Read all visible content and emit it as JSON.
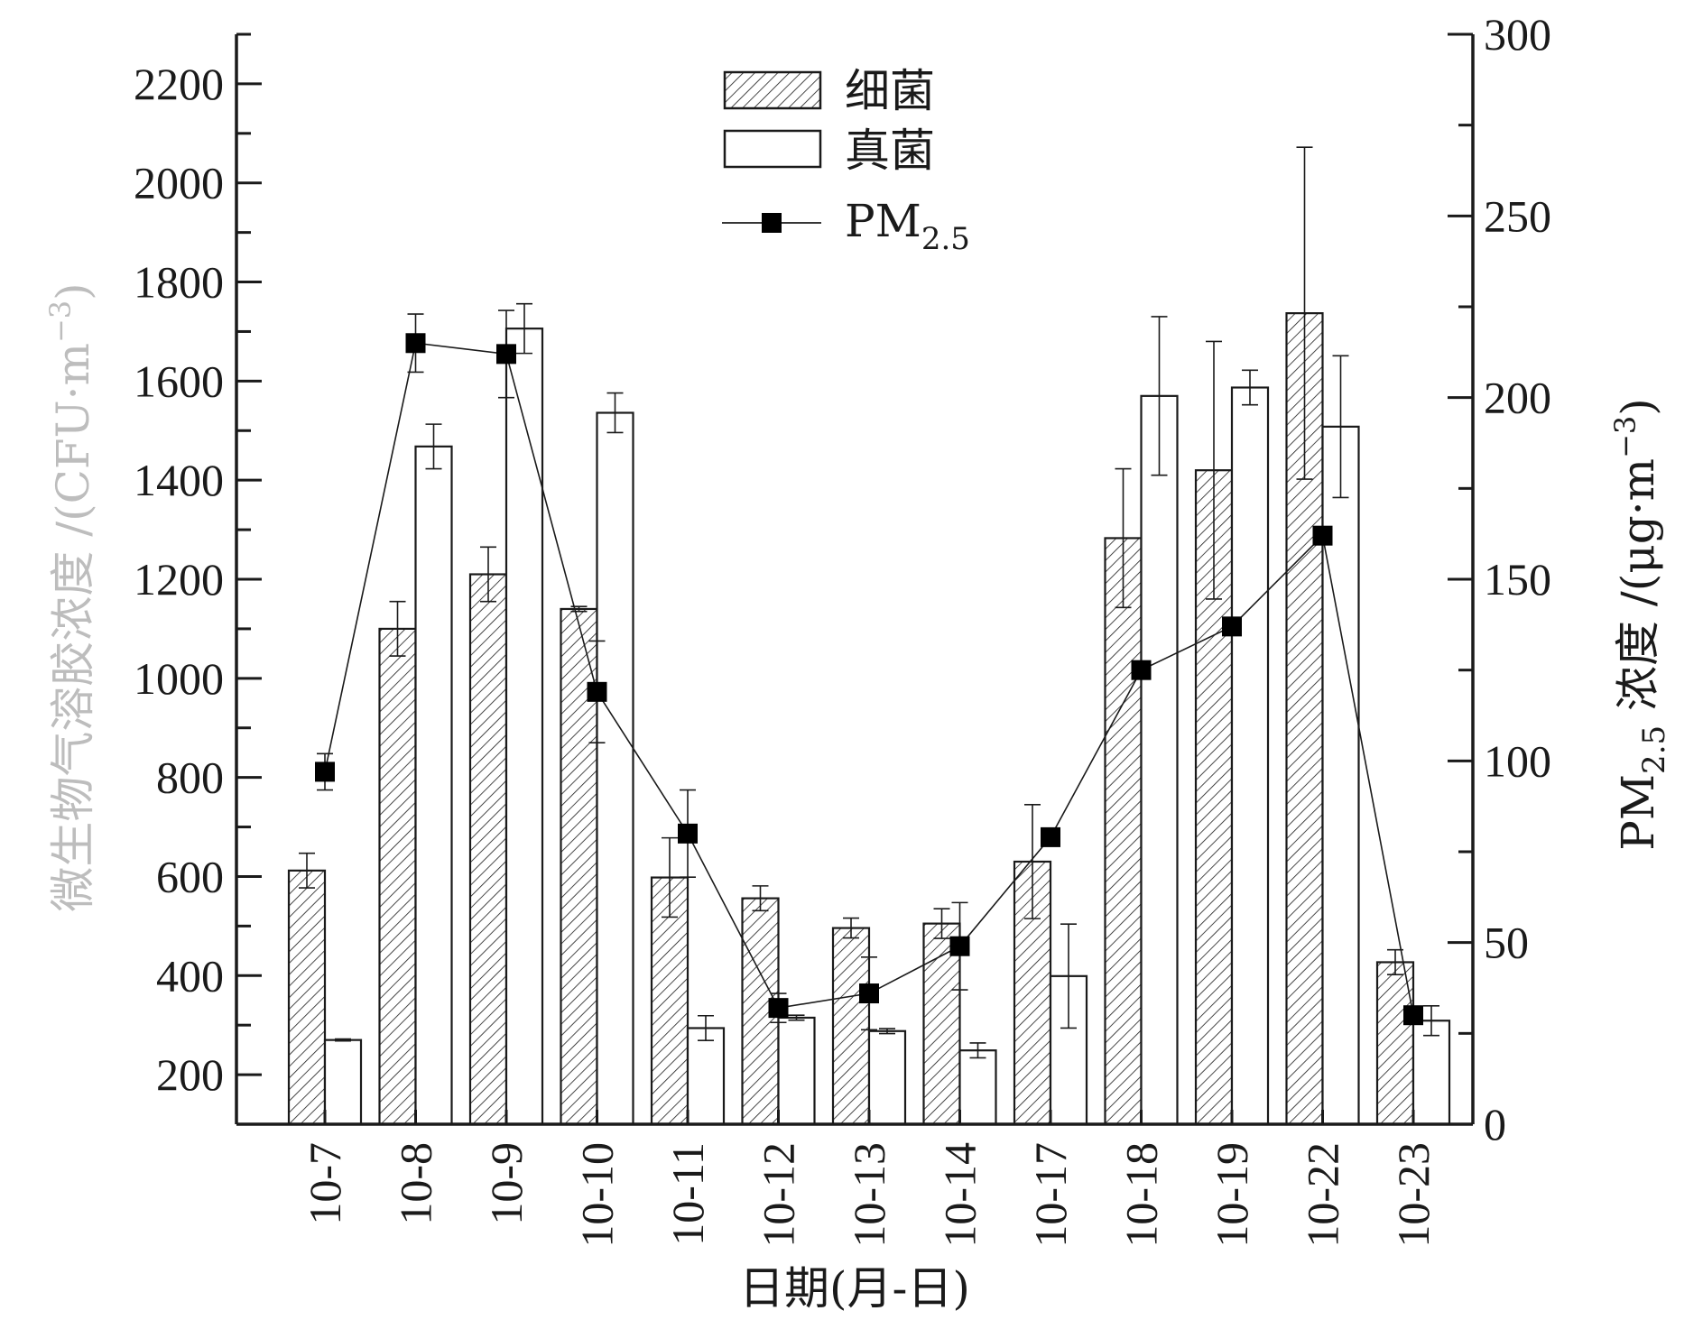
{
  "chart_data": {
    "type": "bar",
    "categories": [
      "10-7",
      "10-8",
      "10-9",
      "10-10",
      "10-11",
      "10-12",
      "10-13",
      "10-14",
      "10-17",
      "10-18",
      "10-19",
      "10-22",
      "10-23"
    ],
    "xlabel": "日期(月-日)",
    "ylabel": "微生物气溶胶浓度 /(CFU·m",
    "ylabel_sup": "−3",
    "ylabel_close": ")",
    "y2label_prefix": "PM",
    "y2label_sub": "2.5",
    "y2label_mid": " 浓度 /(μg·m",
    "y2label_sup": "−3",
    "y2label_close": ")",
    "ylim": [
      100,
      2300
    ],
    "yticks": [
      "200",
      "400",
      "600",
      "800",
      "1000",
      "1200",
      "1400",
      "1600",
      "1800",
      "2000",
      "2200"
    ],
    "y2lim": [
      0,
      300
    ],
    "y2ticks": [
      "0",
      "50",
      "100",
      "150",
      "200",
      "250",
      "300"
    ],
    "series": [
      {
        "name": "细菌",
        "axis": "left",
        "style": "hatched-bar",
        "values": [
          612,
          1100,
          1210,
          1140,
          598,
          556,
          496,
          505,
          630,
          1283,
          1420,
          1737,
          427
        ],
        "errors": [
          35,
          55,
          55,
          5,
          80,
          25,
          20,
          30,
          115,
          140,
          260,
          335,
          25
        ]
      },
      {
        "name": "真菌",
        "axis": "left",
        "style": "open-bar",
        "values": [
          270,
          1468,
          1706,
          1536,
          294,
          315,
          288,
          249,
          399,
          1570,
          1587,
          1508,
          309
        ],
        "errors": [
          2,
          45,
          50,
          40,
          25,
          5,
          5,
          15,
          105,
          160,
          35,
          143,
          30
        ]
      },
      {
        "name": "PM2.5",
        "axis": "right",
        "style": "line-square-marker",
        "values": [
          97,
          215,
          212,
          119,
          80,
          32,
          36,
          49,
          79,
          125,
          137,
          162,
          30
        ],
        "errors": [
          5,
          8,
          12,
          14,
          12,
          4,
          10,
          12,
          0,
          0,
          0,
          0,
          0
        ]
      }
    ],
    "legend": {
      "placement": "top-center",
      "items": [
        {
          "label": "细菌",
          "sub": ""
        },
        {
          "label": "真菌",
          "sub": ""
        },
        {
          "label": "PM",
          "sub": "2.5"
        }
      ]
    }
  },
  "colors": {
    "axis": "#1a1a1a",
    "left_axis_title": "#bdbdbd",
    "bar_fill_open": "#ffffff",
    "hatch": "#1a1a1a",
    "marker": "#000000"
  }
}
